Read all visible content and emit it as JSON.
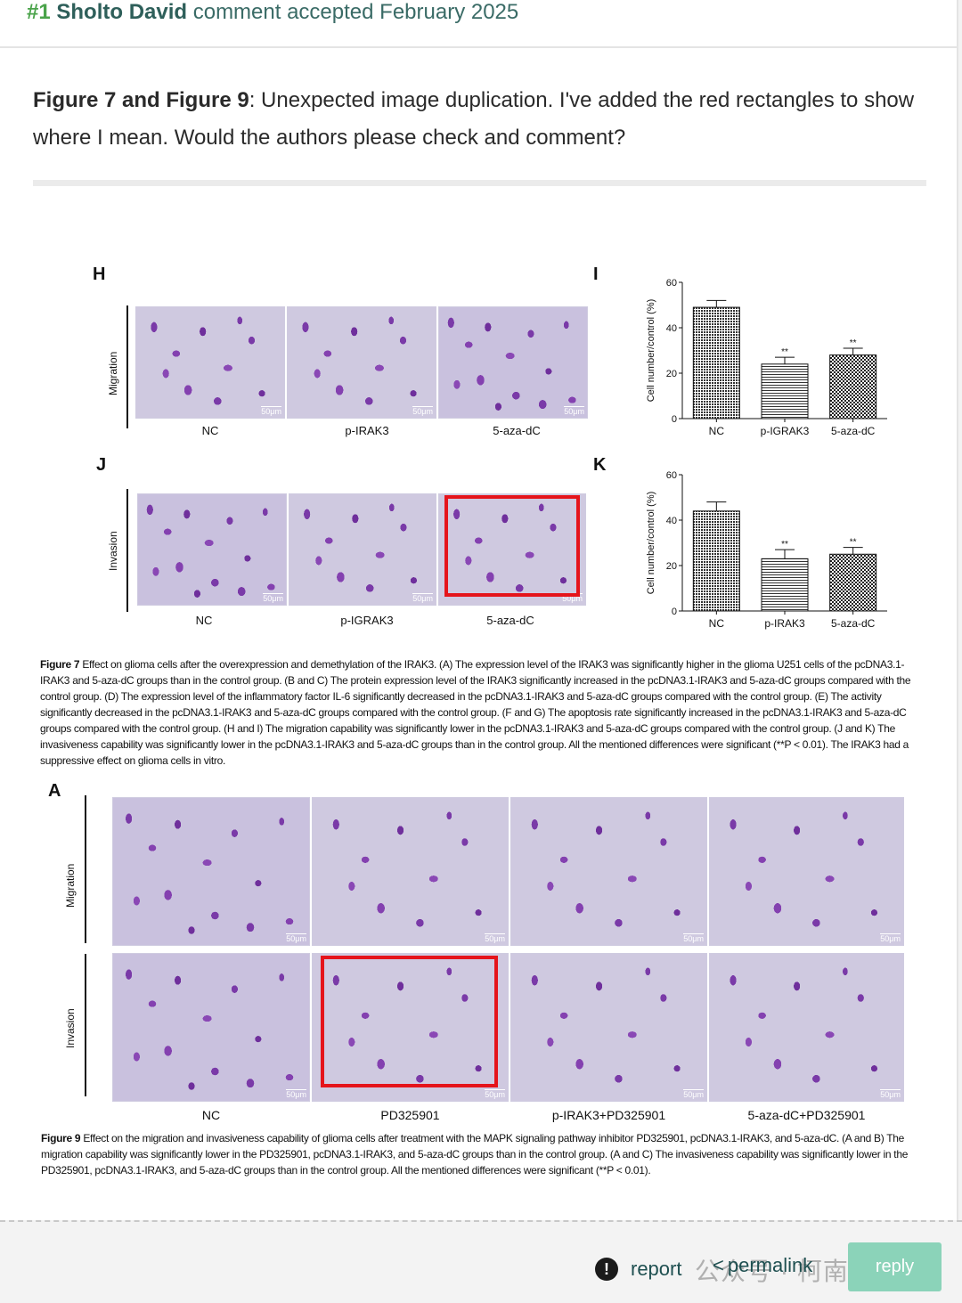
{
  "header": {
    "number": "#1",
    "author": "Sholto David",
    "status": "comment accepted February 2025"
  },
  "comment": {
    "bold": "Figure 7 and Figure 9",
    "text": ": Unexpected image duplication. I've added the red rectangles to show where I mean. Would the authors please check and comment?"
  },
  "figure7": {
    "panel_H": "H",
    "panel_I": "I",
    "panel_J": "J",
    "panel_K": "K",
    "migration_label": "Migration",
    "invasion_label": "Invasion",
    "scale": "50μm",
    "H_labels": [
      "NC",
      "p-IRAK3",
      "5-aza-dC"
    ],
    "J_labels": [
      "NC",
      "p-IGRAK3",
      "5-aza-dC"
    ],
    "caption_title": "Figure 7",
    "caption": "Effect on glioma cells after the overexpression and demethylation of the IRAK3. (A) The expression level of the IRAK3 was significantly higher in the glioma U251 cells of the pcDNA3.1-IRAK3 and 5-aza-dC groups than in the control group. (B and C) The protein expression level of the IRAK3 significantly increased in the pcDNA3.1-IRAK3 and 5-aza-dC groups compared with the control group. (D) The expression level of the inflammatory factor IL-6 significantly decreased in the pcDNA3.1-IRAK3 and 5-aza-dC groups compared with the control group. (E) The activity significantly decreased in the pcDNA3.1-IRAK3 and 5-aza-dC groups compared with the control group. (F and G) The apoptosis rate significantly increased in the pcDNA3.1-IRAK3 and 5-aza-dC groups compared with the control group. (H and I) The migration capability was significantly lower in the pcDNA3.1-IRAK3 and 5-aza-dC groups compared with the control group. (J and K) The invasiveness capability was significantly lower in the pcDNA3.1-IRAK3 and 5-aza-dC groups than in the control group. All the mentioned differences were significant (**P < 0.01). The IRAK3 had a suppressive effect on glioma cells in vitro."
  },
  "chart_data": [
    {
      "type": "bar",
      "panel": "I",
      "categories": [
        "NC",
        "p-IGRAK3",
        "5-aza-dC"
      ],
      "values": [
        49,
        24,
        28
      ],
      "errors": [
        3,
        3,
        3
      ],
      "significance": [
        "",
        "**",
        "**"
      ],
      "patterns": [
        "dots",
        "hlines",
        "checker"
      ],
      "ylabel": "Cell number/control (%)",
      "yticks": [
        0,
        20,
        40,
        60
      ],
      "ylim": [
        0,
        60
      ]
    },
    {
      "type": "bar",
      "panel": "K",
      "categories": [
        "NC",
        "p-IRAK3",
        "5-aza-dC"
      ],
      "values": [
        44,
        23,
        25
      ],
      "errors": [
        4,
        4,
        3
      ],
      "significance": [
        "",
        "**",
        "**"
      ],
      "patterns": [
        "dots",
        "hlines",
        "checker"
      ],
      "ylabel": "Cell number/control (%)",
      "yticks": [
        0,
        20,
        40,
        60
      ],
      "ylim": [
        0,
        60
      ]
    }
  ],
  "figure9": {
    "panel_A": "A",
    "migration_label": "Migration",
    "invasion_label": "Invasion",
    "scale": "50μm",
    "labels": [
      "NC",
      "PD325901",
      "p-IRAK3+PD325901",
      "5-aza-dC+PD325901"
    ],
    "caption_title": "Figure 9",
    "caption": "Effect on the migration and invasiveness capability of glioma cells after treatment with the MAPK signaling pathway inhibitor PD325901, pcDNA3.1-IRAK3, and 5-aza-dC. (A and B) The migration capability was significantly lower in the PD325901, pcDNA3.1-IRAK3, and 5-aza-dC groups than in the control group. (A and C) The invasiveness capability was significantly lower in the PD325901, pcDNA3.1-IRAK3, and 5-aza-dC groups than in the control group. All the mentioned differences were significant (**P < 0.01)."
  },
  "footer": {
    "report": "report",
    "report_icon": "!",
    "permalink": "permalink",
    "reply": "reply",
    "watermark": "公众号 · 柯南科研"
  },
  "colors": {
    "highlight_box": "#e5141b",
    "reply_button": "#8bd3b9",
    "link": "#1e4f50",
    "header_number": "#4aa34a"
  }
}
